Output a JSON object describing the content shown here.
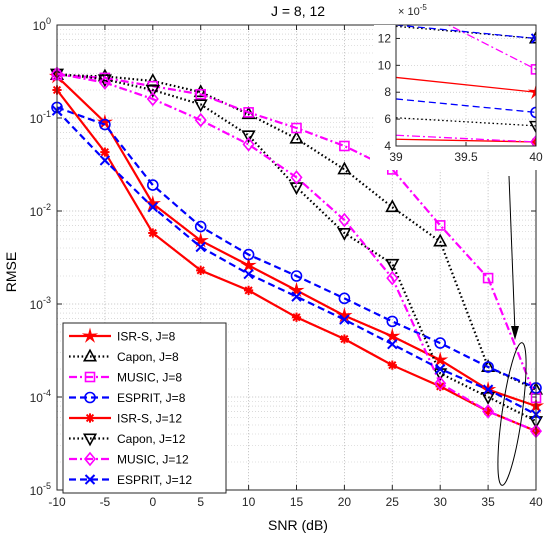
{
  "chart_data": {
    "type": "line",
    "title": "J = 8, 12",
    "xlabel": "SNR (dB)",
    "ylabel": "RMSE",
    "yscale": "log",
    "xlim": [
      -10,
      40
    ],
    "ylim": [
      1e-05,
      1
    ],
    "grid": true,
    "x": [
      -10,
      -5,
      0,
      5,
      10,
      15,
      20,
      25,
      30,
      35,
      40
    ],
    "x_ticks": [
      "-10",
      "-5",
      "0",
      "5",
      "10",
      "15",
      "20",
      "25",
      "30",
      "35",
      "40"
    ],
    "y_ticks": [
      {
        "base": "10",
        "exp": "-5"
      },
      {
        "base": "10",
        "exp": "-4"
      },
      {
        "base": "10",
        "exp": "-3"
      },
      {
        "base": "10",
        "exp": "-2"
      },
      {
        "base": "10",
        "exp": "-1"
      },
      {
        "base": "10",
        "exp": "0"
      }
    ],
    "legend_position": "bottom-left",
    "series": [
      {
        "name": "ISR-S, J=8",
        "color": "#ff0000",
        "dash": "solid",
        "marker": "star",
        "values": [
          0.28,
          0.09,
          0.012,
          0.0048,
          0.0026,
          0.0014,
          0.00075,
          0.00045,
          0.00025,
          0.00012,
          8e-05
        ]
      },
      {
        "name": "Capon, J=8",
        "color": "#000000",
        "dash": "dotted",
        "marker": "triangle-up",
        "values": [
          0.29,
          0.28,
          0.25,
          0.19,
          0.11,
          0.06,
          0.028,
          0.011,
          0.0047,
          0.00021,
          0.00012
        ]
      },
      {
        "name": "MUSIC, J=8",
        "color": "#ff00ff",
        "dash": "dashdot",
        "marker": "square",
        "values": [
          0.29,
          0.27,
          0.22,
          0.18,
          0.115,
          0.078,
          0.05,
          0.028,
          0.007,
          0.0019,
          9.8e-05
        ]
      },
      {
        "name": "ESPRIT, J=8",
        "color": "#0000ff",
        "dash": "dashed",
        "marker": "circle",
        "values": [
          0.13,
          0.085,
          0.019,
          0.0068,
          0.0034,
          0.002,
          0.00115,
          0.00065,
          0.00038,
          0.00021,
          0.000125
        ]
      },
      {
        "name": "ISR-S, J=12",
        "color": "#ff0000",
        "dash": "solid",
        "marker": "asterisk",
        "values": [
          0.2,
          0.043,
          0.0058,
          0.0023,
          0.0014,
          0.00072,
          0.00042,
          0.00022,
          0.00013,
          7e-05,
          4.3e-05
        ]
      },
      {
        "name": "Capon, J=12",
        "color": "#000000",
        "dash": "dotted",
        "marker": "triangle-down",
        "values": [
          0.3,
          0.26,
          0.2,
          0.14,
          0.065,
          0.018,
          0.0058,
          0.0027,
          0.00018,
          0.0001,
          5.5e-05
        ]
      },
      {
        "name": "MUSIC, J=12",
        "color": "#ff00ff",
        "dash": "dashdot",
        "marker": "diamond",
        "values": [
          0.3,
          0.24,
          0.16,
          0.095,
          0.052,
          0.023,
          0.008,
          0.0019,
          0.00014,
          7e-05,
          4.3e-05
        ]
      },
      {
        "name": "ESPRIT, J=12",
        "color": "#0000ff",
        "dash": "dashed",
        "marker": "x",
        "values": [
          0.12,
          0.035,
          0.011,
          0.0041,
          0.0021,
          0.0012,
          0.00068,
          0.00037,
          0.0002,
          0.00012,
          6.5e-05
        ]
      }
    ],
    "inset": {
      "xlim": [
        39,
        40
      ],
      "ylim": [
        4,
        13
      ],
      "x_ticks": [
        "39",
        "39.5",
        "40"
      ],
      "y_ticks": [
        "4",
        "6",
        "8",
        "10",
        "12"
      ],
      "y_multiplier": {
        "base": "10",
        "exp": "-5"
      },
      "series_values": [
        [
          9.1,
          8.0
        ],
        [
          12.9,
          12.0
        ],
        [
          15.0,
          9.7
        ],
        [
          7.5,
          6.5
        ],
        [
          4.5,
          4.3
        ],
        [
          6.1,
          5.5
        ],
        [
          4.8,
          4.3
        ],
        [
          13.0,
          12.0
        ]
      ]
    },
    "annotations": [
      "ellipse around SNR 38-40 dB points",
      "arrow pointing from inset to ellipse"
    ]
  }
}
